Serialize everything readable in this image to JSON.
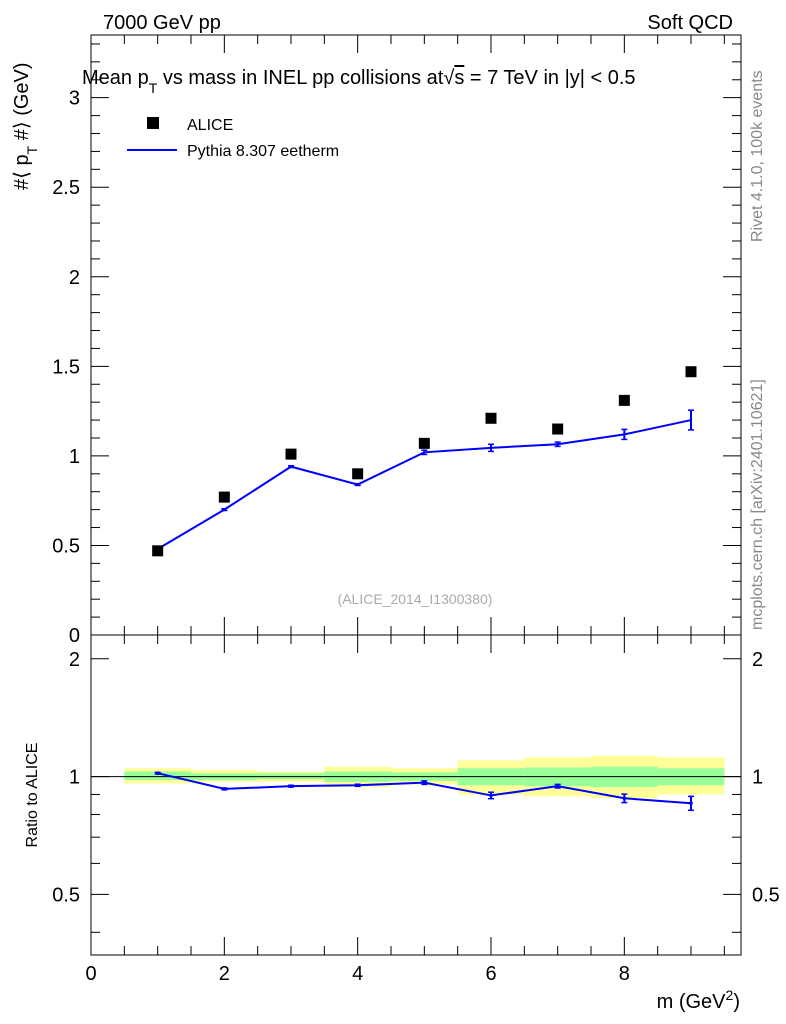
{
  "header": {
    "left": "7000 GeV pp",
    "right": "Soft QCD"
  },
  "side_labels": {
    "rivet": "Rivet 4.1.0,  100k events",
    "mcplots": "mcplots.cern.ch [arXiv:2401.10621]"
  },
  "watermark": "(ALICE_2014_I1300380)",
  "colors": {
    "data": "#000000",
    "mc": "#0000ff",
    "band_inner": "#99ff99",
    "band_outer": "#ffff99"
  },
  "chart_data": [
    {
      "type": "scatter",
      "title": "Mean p_T vs mass in INEL pp collisions at √s = 7 TeV in |y| < 0.5",
      "title_parts": {
        "pre": "Mean p",
        "sub": "T",
        "mid": " vs mass in INEL pp collisions at",
        "sqrt": "√",
        "s": "s",
        "post": " =  7 TeV in |y| < 0.5"
      },
      "ylabel": "#⟨ p_T #⟩ (GeV)",
      "ylabel_parts": {
        "pre": "#⟨ p",
        "sub": "T",
        "post": " #⟩ (GeV)"
      },
      "xlim": [
        0,
        9.75
      ],
      "ylim": [
        0,
        3.35
      ],
      "yticks": [
        0,
        0.5,
        1,
        1.5,
        2,
        2.5,
        3
      ],
      "ytick_labels": [
        "0",
        "0.5",
        "1",
        "1.5",
        "2",
        "2.5",
        "3"
      ],
      "legend": [
        {
          "label": "ALICE",
          "marker": "square"
        },
        {
          "label": "Pythia 8.307 eetherm",
          "marker": "line"
        }
      ],
      "series": [
        {
          "name": "ALICE",
          "x": [
            1,
            2,
            3,
            4,
            5,
            6,
            7,
            8,
            9
          ],
          "y": [
            0.47,
            0.77,
            1.01,
            0.9,
            1.07,
            1.21,
            1.15,
            1.31,
            1.47
          ]
        },
        {
          "name": "Pythia 8.307 eetherm",
          "x": [
            1,
            2,
            3,
            4,
            5,
            6,
            7,
            8,
            9
          ],
          "y": [
            0.48,
            0.7,
            0.94,
            0.84,
            1.02,
            1.045,
            1.065,
            1.12,
            1.2
          ],
          "yerr": [
            0.005,
            0.005,
            0.005,
            0.005,
            0.012,
            0.02,
            0.012,
            0.028,
            0.055
          ]
        }
      ]
    },
    {
      "type": "scatter",
      "ylabel": "Ratio to ALICE",
      "xlabel": "m (GeV²)",
      "xlabel_parts": {
        "pre": "m (GeV",
        "sup": "2",
        "post": ")"
      },
      "xlim": [
        0,
        9.75
      ],
      "ylim": [
        0.35,
        2.3
      ],
      "scale": "log",
      "xticks": [
        0,
        2,
        4,
        6,
        8
      ],
      "xtick_labels": [
        "0",
        "2",
        "4",
        "6",
        "8"
      ],
      "yticks": [
        0.5,
        1,
        2
      ],
      "ytick_labels": [
        "0.5",
        "1",
        "2"
      ],
      "bands": [
        {
          "x0": 0.5,
          "x1": 1.5,
          "inner": [
            0.98,
            1.03
          ],
          "outer": [
            0.96,
            1.05
          ]
        },
        {
          "x0": 1.5,
          "x1": 2.5,
          "inner": [
            0.98,
            1.02
          ],
          "outer": [
            0.97,
            1.04
          ]
        },
        {
          "x0": 2.5,
          "x1": 3.5,
          "inner": [
            0.985,
            1.02
          ],
          "outer": [
            0.97,
            1.03
          ]
        },
        {
          "x0": 3.5,
          "x1": 4.5,
          "inner": [
            0.97,
            1.03
          ],
          "outer": [
            0.94,
            1.06
          ]
        },
        {
          "x0": 4.5,
          "x1": 5.5,
          "inner": [
            0.975,
            1.025
          ],
          "outer": [
            0.955,
            1.05
          ]
        },
        {
          "x0": 5.5,
          "x1": 6.5,
          "inner": [
            0.95,
            1.05
          ],
          "outer": [
            0.9,
            1.1
          ]
        },
        {
          "x0": 6.5,
          "x1": 7.5,
          "inner": [
            0.945,
            1.055
          ],
          "outer": [
            0.89,
            1.12
          ]
        },
        {
          "x0": 7.5,
          "x1": 8.5,
          "inner": [
            0.94,
            1.06
          ],
          "outer": [
            0.88,
            1.13
          ]
        },
        {
          "x0": 8.5,
          "x1": 9.5,
          "inner": [
            0.95,
            1.05
          ],
          "outer": [
            0.9,
            1.12
          ]
        }
      ],
      "series": [
        {
          "name": "Pythia 8.307 eetherm / ALICE",
          "x": [
            1,
            2,
            3,
            4,
            5,
            6,
            7,
            8,
            9
          ],
          "y": [
            1.02,
            0.93,
            0.945,
            0.95,
            0.965,
            0.895,
            0.945,
            0.88,
            0.855
          ],
          "yerr": [
            0.005,
            0.005,
            0.005,
            0.006,
            0.01,
            0.017,
            0.01,
            0.022,
            0.035
          ]
        }
      ]
    }
  ]
}
